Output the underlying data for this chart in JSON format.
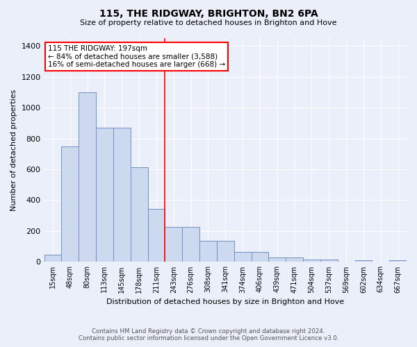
{
  "title": "115, THE RIDGWAY, BRIGHTON, BN2 6PA",
  "subtitle": "Size of property relative to detached houses in Brighton and Hove",
  "xlabel": "Distribution of detached houses by size in Brighton and Hove",
  "ylabel": "Number of detached properties",
  "bar_labels": [
    "15sqm",
    "48sqm",
    "80sqm",
    "113sqm",
    "145sqm",
    "178sqm",
    "211sqm",
    "243sqm",
    "276sqm",
    "308sqm",
    "341sqm",
    "374sqm",
    "406sqm",
    "439sqm",
    "471sqm",
    "504sqm",
    "537sqm",
    "569sqm",
    "602sqm",
    "634sqm",
    "667sqm"
  ],
  "bar_values": [
    47,
    750,
    1100,
    868,
    868,
    615,
    345,
    228,
    228,
    135,
    135,
    65,
    65,
    28,
    28,
    16,
    16,
    0,
    10,
    0,
    10
  ],
  "bar_color": "#ccd9ef",
  "bar_edge_color": "#7090c0",
  "vline_x": 6.5,
  "vline_color": "red",
  "annotation_text": "115 THE RIDGWAY: 197sqm\n← 84% of detached houses are smaller (3,588)\n16% of semi-detached houses are larger (668) →",
  "annotation_box_color": "white",
  "annotation_box_edge": "red",
  "ylim": [
    0,
    1450
  ],
  "yticks": [
    0,
    200,
    400,
    600,
    800,
    1000,
    1200,
    1400
  ],
  "background_color": "#eaeffa",
  "grid_color": "#ffffff",
  "footer_line1": "Contains HM Land Registry data © Crown copyright and database right 2024.",
  "footer_line2": "Contains public sector information licensed under the Open Government Licence v3.0."
}
